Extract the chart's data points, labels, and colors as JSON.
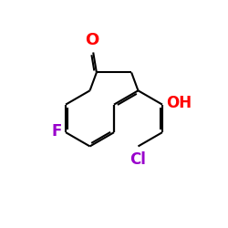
{
  "background_color": "#ffffff",
  "bond_color": "#000000",
  "atom_colors": {
    "O": "#ff0000",
    "OH": "#ff0000",
    "F": "#9900cc",
    "Cl": "#9900cc"
  },
  "figsize": [
    2.5,
    2.5
  ],
  "dpi": 100,
  "lw": 1.5
}
